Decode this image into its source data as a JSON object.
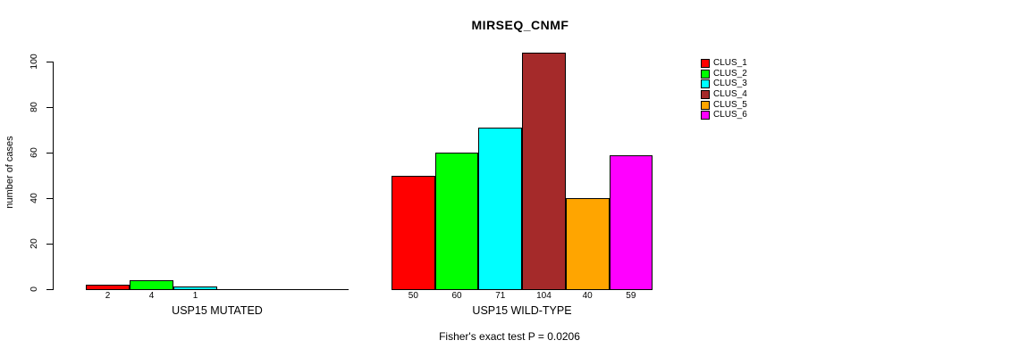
{
  "chart_data": {
    "type": "bar",
    "title": "MIRSEQ_CNMF",
    "ylabel": "number of cases",
    "xlabel": "",
    "ylim": [
      0,
      100
    ],
    "yticks": [
      0,
      20,
      40,
      60,
      80,
      100
    ],
    "grid": false,
    "legend_position": "right",
    "legend": [
      {
        "name": "CLUS_1",
        "color": "#FF0000"
      },
      {
        "name": "CLUS_2",
        "color": "#00FF00"
      },
      {
        "name": "CLUS_3",
        "color": "#00FFFF"
      },
      {
        "name": "CLUS_4",
        "color": "#A52A2A"
      },
      {
        "name": "CLUS_5",
        "color": "#FFA500"
      },
      {
        "name": "CLUS_6",
        "color": "#FF00FF"
      }
    ],
    "groups": [
      {
        "label": "USP15 MUTATED",
        "series": [
          "CLUS_1",
          "CLUS_2",
          "CLUS_3"
        ],
        "values": [
          2,
          4,
          1
        ],
        "value_labels": [
          "2",
          "4",
          "1"
        ],
        "colors": [
          "#FF0000",
          "#00FF00",
          "#00FFFF"
        ],
        "slot_count": 6
      },
      {
        "label": "USP15 WILD-TYPE",
        "series": [
          "CLUS_1",
          "CLUS_2",
          "CLUS_3",
          "CLUS_4",
          "CLUS_5",
          "CLUS_6"
        ],
        "values": [
          50,
          60,
          71,
          104,
          40,
          59
        ],
        "value_labels": [
          "50",
          "60",
          "71",
          "104",
          "40",
          "59"
        ],
        "colors": [
          "#FF0000",
          "#00FF00",
          "#00FFFF",
          "#A52A2A",
          "#FFA500",
          "#FF00FF"
        ],
        "slot_count": 6
      }
    ],
    "annotation": "Fisher's exact test P = 0.0206"
  }
}
